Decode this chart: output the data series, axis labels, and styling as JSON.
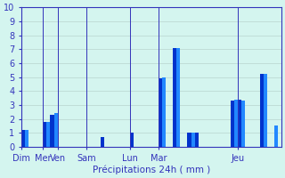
{
  "xlabel": "Précipitations 24h ( mm )",
  "ylim": [
    0,
    10
  ],
  "yticks": [
    0,
    1,
    2,
    3,
    4,
    5,
    6,
    7,
    8,
    9,
    10
  ],
  "background_color": "#d4f5ef",
  "bar_color_dark": "#0000dd",
  "bar_color_light": "#2299ff",
  "grid_color": "#b8d4cf",
  "axis_color": "#3333bb",
  "text_color": "#3333bb",
  "day_labels": [
    "Dim",
    "Mer",
    "Ven",
    "Sam",
    "Lun",
    "Mar",
    "Jeu"
  ],
  "day_tick_positions": [
    0,
    6,
    10,
    18,
    30,
    38,
    60
  ],
  "num_slots": 72,
  "bar_values": [
    1.2,
    1.2,
    0.0,
    0.0,
    0.0,
    0.0,
    1.8,
    1.8,
    2.3,
    2.4,
    0.0,
    0.0,
    0.0,
    0.0,
    0.0,
    0.0,
    0.0,
    0.0,
    0.0,
    0.0,
    0.0,
    0.0,
    0.7,
    0.0,
    0.0,
    0.0,
    0.0,
    0.0,
    0.0,
    0.0,
    1.0,
    0.0,
    0.0,
    0.0,
    0.0,
    0.0,
    0.0,
    0.0,
    4.9,
    5.0,
    0.0,
    0.0,
    7.1,
    7.1,
    0.0,
    0.0,
    1.0,
    1.0,
    1.0,
    0.0,
    0.0,
    0.0,
    0.0,
    0.0,
    0.0,
    0.0,
    0.0,
    0.0,
    3.3,
    3.4,
    3.4,
    3.3,
    0.0,
    0.0,
    0.0,
    0.0,
    5.2,
    5.2,
    0.0,
    0.0,
    1.5,
    0.0
  ],
  "bar_colors": [
    "#0033cc",
    "#2288ff",
    "#0033cc",
    "#0033cc",
    "#0033cc",
    "#0033cc",
    "#0033cc",
    "#2288ff",
    "#0033cc",
    "#2288ff",
    "#0033cc",
    "#0033cc",
    "#0033cc",
    "#0033cc",
    "#0033cc",
    "#0033cc",
    "#0033cc",
    "#0033cc",
    "#0033cc",
    "#0033cc",
    "#0033cc",
    "#0033cc",
    "#0033cc",
    "#0033cc",
    "#0033cc",
    "#0033cc",
    "#0033cc",
    "#0033cc",
    "#0033cc",
    "#0033cc",
    "#0033cc",
    "#0033cc",
    "#0033cc",
    "#0033cc",
    "#0033cc",
    "#0033cc",
    "#0033cc",
    "#0033cc",
    "#0033cc",
    "#2288ff",
    "#0033cc",
    "#0033cc",
    "#0033cc",
    "#2288ff",
    "#0033cc",
    "#0033cc",
    "#0033cc",
    "#2288ff",
    "#0033cc",
    "#0033cc",
    "#0033cc",
    "#0033cc",
    "#0033cc",
    "#0033cc",
    "#0033cc",
    "#0033cc",
    "#0033cc",
    "#0033cc",
    "#0033cc",
    "#2288ff",
    "#0033cc",
    "#2288ff",
    "#0033cc",
    "#0033cc",
    "#0033cc",
    "#0033cc",
    "#0033cc",
    "#2288ff",
    "#0033cc",
    "#0033cc",
    "#2288ff",
    "#0033cc"
  ]
}
